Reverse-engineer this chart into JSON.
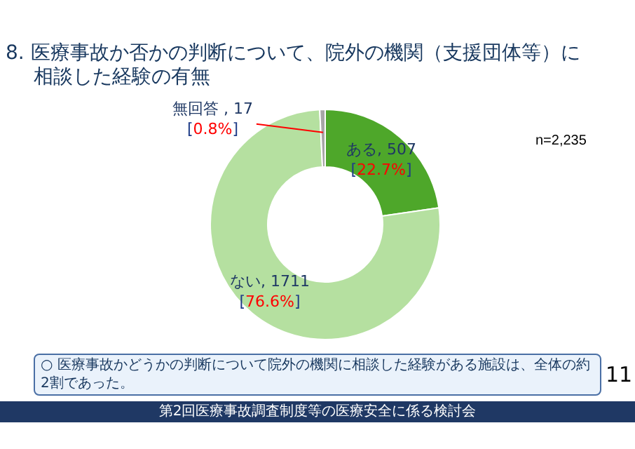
{
  "chart_data": {
    "type": "donut",
    "title": "8. 医療事故か否かの判断について、院外の機関（支援団体等）に相談した経験の有無",
    "categories": [
      "ある",
      "ない",
      "無回答"
    ],
    "values": [
      507,
      1711,
      17
    ],
    "value_labels": [
      ", 507\n[22.7%]",
      ", 1711\n[76.6%]",
      " , 17\n[0.8%]"
    ],
    "colors": [
      "#4ea72a",
      "#b5e0a0",
      "#a6a6a6"
    ],
    "legend": false,
    "annotations": [
      "n=2,235",
      "○ 医療事故かどうかの判断について院外の機関に相談した経験がある施設は、全体の約2割であった。",
      "11",
      "第2回医療事故調査制度等の医療安全に係る検討会"
    ]
  }
}
